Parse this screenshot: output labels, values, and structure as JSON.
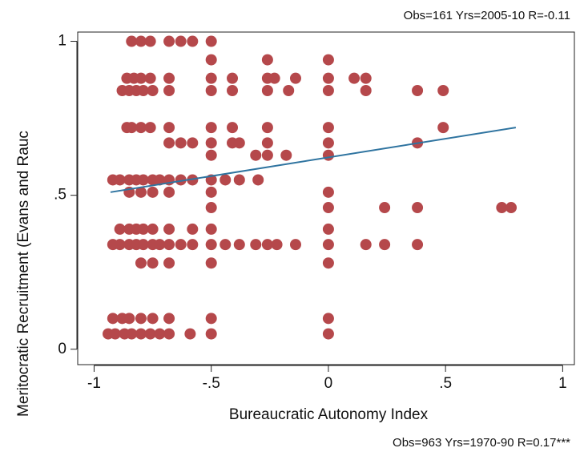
{
  "chart_data": {
    "type": "scatter",
    "annotation_top": "Obs=161 Yrs=2005-10 R=-0.11",
    "annotation_bottom": "Obs=963 Yrs=1970-90 R=0.17***",
    "x_label": "Bureaucratic Autonomy Index",
    "y_label": "Meritocratic Recruitment (Evans and Rauc",
    "xlim": [
      -1.07,
      1.05
    ],
    "ylim": [
      -0.05,
      1.03
    ],
    "xticks": [
      {
        "value": -1,
        "label": "-1"
      },
      {
        "value": -0.5,
        "label": "-.5"
      },
      0,
      {
        "value": 0.5,
        "label": ".5"
      },
      1
    ],
    "yticks": [
      0,
      {
        "value": 0.5,
        "label": ".5"
      },
      1
    ],
    "color": "#b5484b",
    "x": [
      -0.84,
      -0.8,
      -0.76,
      -0.68,
      -0.63,
      -0.58,
      -0.5,
      -0.5,
      -0.26,
      0,
      -0.86,
      -0.83,
      -0.8,
      -0.76,
      -0.68,
      -0.5,
      -0.41,
      -0.26,
      -0.23,
      -0.14,
      0,
      0.11,
      0.16,
      -0.88,
      -0.85,
      -0.82,
      -0.79,
      -0.75,
      -0.68,
      -0.5,
      -0.41,
      -0.26,
      -0.17,
      0,
      0.16,
      0.38,
      0.49,
      -0.86,
      -0.84,
      -0.8,
      -0.76,
      -0.68,
      -0.5,
      -0.41,
      -0.26,
      0,
      0.49,
      -0.68,
      -0.63,
      -0.58,
      -0.5,
      -0.41,
      -0.38,
      -0.26,
      0,
      0.38,
      -0.5,
      -0.31,
      -0.26,
      -0.18,
      0,
      -0.92,
      -0.89,
      -0.85,
      -0.82,
      -0.79,
      -0.75,
      -0.72,
      -0.68,
      -0.63,
      -0.58,
      -0.5,
      -0.44,
      -0.38,
      -0.3,
      -0.85,
      -0.8,
      -0.75,
      -0.68,
      -0.5,
      0,
      -0.5,
      0,
      0.24,
      0.38,
      0.74,
      0.78,
      -0.89,
      -0.85,
      -0.82,
      -0.79,
      -0.75,
      -0.68,
      -0.58,
      -0.5,
      0,
      -0.92,
      -0.89,
      -0.85,
      -0.82,
      -0.79,
      -0.75,
      -0.72,
      -0.68,
      -0.63,
      -0.58,
      -0.5,
      -0.44,
      -0.38,
      -0.31,
      -0.26,
      -0.22,
      -0.14,
      0,
      0.16,
      0.24,
      0.38,
      -0.8,
      -0.75,
      -0.68,
      -0.5,
      0,
      -0.92,
      -0.88,
      -0.85,
      -0.8,
      -0.75,
      -0.68,
      -0.5,
      0,
      -0.94,
      -0.91,
      -0.87,
      -0.84,
      -0.8,
      -0.76,
      -0.72,
      -0.68,
      -0.59,
      -0.5,
      0
    ],
    "values": [
      1,
      1,
      1,
      1,
      1,
      1,
      1,
      0.94,
      0.94,
      0.94,
      0.88,
      0.88,
      0.88,
      0.88,
      0.88,
      0.88,
      0.88,
      0.88,
      0.88,
      0.88,
      0.88,
      0.88,
      0.88,
      0.84,
      0.84,
      0.84,
      0.84,
      0.84,
      0.84,
      0.84,
      0.84,
      0.84,
      0.84,
      0.84,
      0.84,
      0.84,
      0.84,
      0.72,
      0.72,
      0.72,
      0.72,
      0.72,
      0.72,
      0.72,
      0.72,
      0.72,
      0.72,
      0.67,
      0.67,
      0.67,
      0.67,
      0.67,
      0.67,
      0.67,
      0.67,
      0.67,
      0.63,
      0.63,
      0.63,
      0.63,
      0.63,
      0.55,
      0.55,
      0.55,
      0.55,
      0.55,
      0.55,
      0.55,
      0.55,
      0.55,
      0.55,
      0.55,
      0.55,
      0.55,
      0.55,
      0.51,
      0.51,
      0.51,
      0.51,
      0.51,
      0.51,
      0.46,
      0.46,
      0.46,
      0.46,
      0.46,
      0.46,
      0.39,
      0.39,
      0.39,
      0.39,
      0.39,
      0.39,
      0.39,
      0.39,
      0.39,
      0.34,
      0.34,
      0.34,
      0.34,
      0.34,
      0.34,
      0.34,
      0.34,
      0.34,
      0.34,
      0.34,
      0.34,
      0.34,
      0.34,
      0.34,
      0.34,
      0.34,
      0.34,
      0.34,
      0.34,
      0.34,
      0.28,
      0.28,
      0.28,
      0.28,
      0.28,
      0.1,
      0.1,
      0.1,
      0.1,
      0.1,
      0.1,
      0.1,
      0.1,
      0.05,
      0.05,
      0.05,
      0.05,
      0.05,
      0.05,
      0.05,
      0.05,
      0.05,
      0.05,
      0.05
    ],
    "fit": {
      "color": "#2f74a0",
      "x": [
        -0.93,
        0.8
      ],
      "values": [
        0.51,
        0.72
      ]
    }
  }
}
